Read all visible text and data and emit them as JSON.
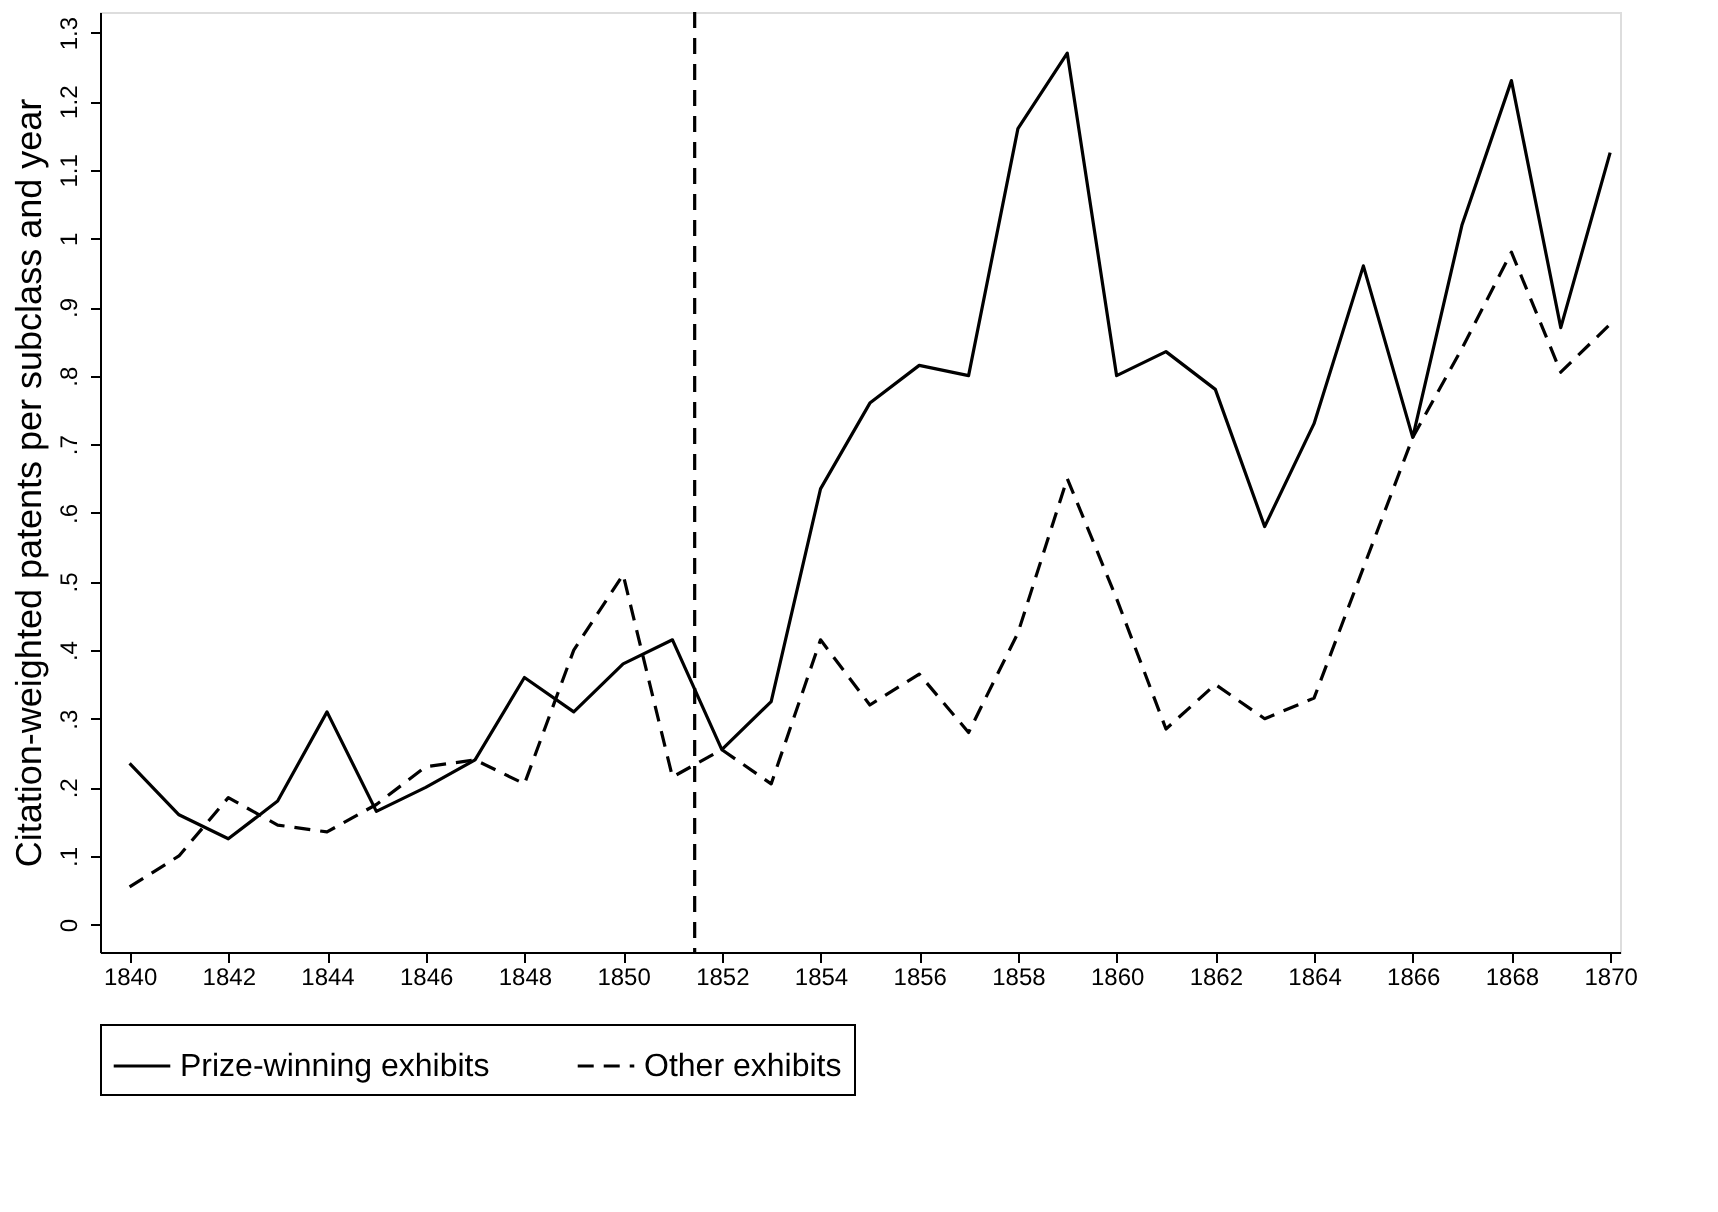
{
  "chart_data": {
    "type": "line",
    "ylabel": "Citation-weighted patents per subclass and year",
    "x": [
      1840,
      1841,
      1842,
      1843,
      1844,
      1845,
      1846,
      1847,
      1848,
      1849,
      1850,
      1851,
      1852,
      1853,
      1854,
      1855,
      1856,
      1857,
      1858,
      1859,
      1860,
      1861,
      1862,
      1863,
      1864,
      1865,
      1866,
      1867,
      1868,
      1869,
      1870
    ],
    "series": [
      {
        "name": "Prize-winning exhibits",
        "color": "#000000",
        "line_style": "solid",
        "values": [
          0.235,
          0.16,
          0.125,
          0.18,
          0.31,
          0.165,
          0.2,
          0.24,
          0.36,
          0.31,
          0.38,
          0.415,
          0.255,
          0.325,
          0.635,
          0.76,
          0.815,
          0.8,
          1.16,
          1.27,
          0.8,
          0.835,
          0.78,
          0.58,
          0.73,
          0.96,
          0.71,
          1.02,
          1.23,
          0.87,
          1.125
        ]
      },
      {
        "name": "Other exhibits",
        "color": "#000000",
        "line_style": "dashed",
        "values": [
          0.055,
          0.1,
          0.185,
          0.145,
          0.135,
          0.175,
          0.23,
          0.24,
          0.205,
          0.4,
          0.51,
          0.215,
          0.255,
          0.205,
          0.415,
          0.32,
          0.365,
          0.28,
          0.425,
          0.65,
          0.475,
          0.285,
          0.35,
          0.3,
          0.33,
          0.52,
          0.71,
          0.84,
          0.98,
          0.805,
          0.875
        ]
      }
    ],
    "xlim": [
      1839.4,
      1870.2
    ],
    "xticks": [
      1840,
      1842,
      1844,
      1846,
      1848,
      1850,
      1852,
      1854,
      1856,
      1858,
      1860,
      1862,
      1864,
      1866,
      1868,
      1870
    ],
    "ylim": [
      -0.04,
      1.33
    ],
    "yticks": [
      0,
      {
        "value": 0.1,
        "label": ".1"
      },
      {
        "value": 0.2,
        "label": ".2"
      },
      {
        "value": 0.3,
        "label": ".3"
      },
      {
        "value": 0.4,
        "label": ".4"
      },
      {
        "value": 0.5,
        "label": ".5"
      },
      {
        "value": 0.6,
        "label": ".6"
      },
      {
        "value": 0.7,
        "label": ".7"
      },
      {
        "value": 0.8,
        "label": ".8"
      },
      {
        "value": 0.9,
        "label": ".9"
      },
      1,
      1.1,
      1.2,
      1.3
    ],
    "ref_lines": [
      {
        "axis": "x",
        "value": 1851.45,
        "line_style": "dashed",
        "color": "#000000"
      }
    ],
    "grid": false,
    "legend": "bottom"
  }
}
